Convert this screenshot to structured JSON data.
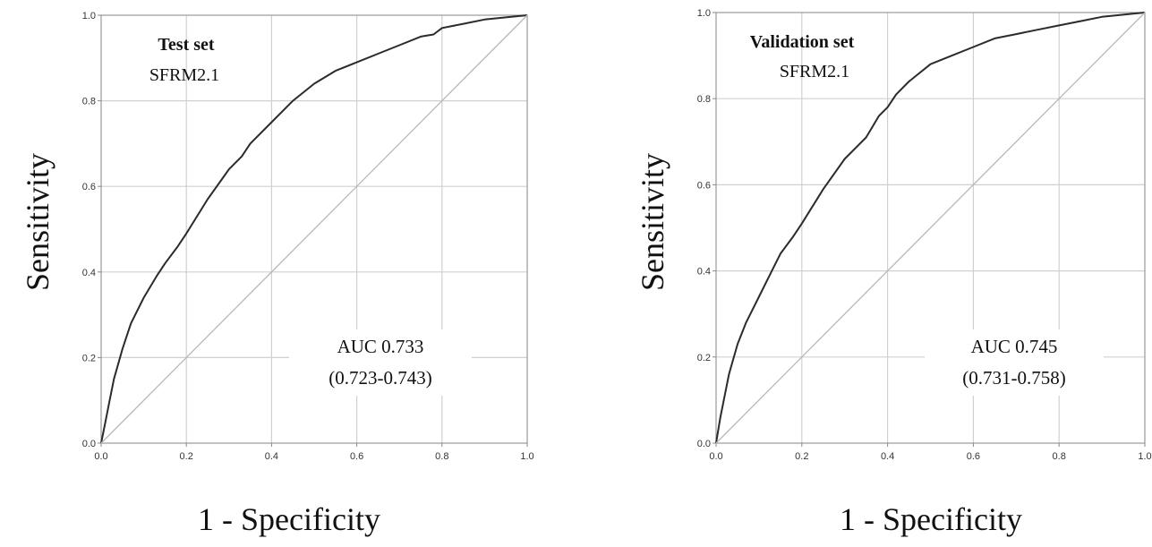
{
  "chart_data": [
    {
      "type": "line",
      "title": "Test set",
      "subtitle": "SFRM2.1",
      "xlabel": "1 - Specificity",
      "ylabel": "Sensitivity",
      "xlim": [
        0,
        1
      ],
      "ylim": [
        0,
        1
      ],
      "xticks": [
        "0.0",
        "0.2",
        "0.4",
        "0.6",
        "0.8",
        "1.0"
      ],
      "yticks": [
        "0.0",
        "0.2",
        "0.4",
        "0.6",
        "0.8",
        "1.0"
      ],
      "grid": true,
      "annotation": [
        "AUC 0.733",
        "(0.723-0.743)"
      ],
      "series": [
        {
          "x": [
            0,
            0.01,
            0.02,
            0.03,
            0.05,
            0.07,
            0.1,
            0.13,
            0.15,
            0.18,
            0.2,
            0.25,
            0.3,
            0.33,
            0.35,
            0.4,
            0.45,
            0.5,
            0.55,
            0.6,
            0.65,
            0.7,
            0.75,
            0.78,
            0.8,
            0.85,
            0.9,
            0.95,
            1.0
          ],
          "y": [
            0,
            0.05,
            0.1,
            0.15,
            0.22,
            0.28,
            0.34,
            0.39,
            0.42,
            0.46,
            0.49,
            0.57,
            0.64,
            0.67,
            0.7,
            0.75,
            0.8,
            0.84,
            0.87,
            0.89,
            0.91,
            0.93,
            0.95,
            0.955,
            0.97,
            0.98,
            0.99,
            0.995,
            1.0
          ]
        },
        {
          "x": [
            0,
            1
          ],
          "y": [
            0,
            1
          ]
        }
      ]
    },
    {
      "type": "line",
      "title": "Validation set",
      "subtitle": "SFRM2.1",
      "xlabel": "1 - Specificity",
      "ylabel": "Sensitivity",
      "xlim": [
        0,
        1
      ],
      "ylim": [
        0,
        1
      ],
      "xticks": [
        "0.0",
        "0.2",
        "0.4",
        "0.6",
        "0.8",
        "1.0"
      ],
      "yticks": [
        "0.0",
        "0.2",
        "0.4",
        "0.6",
        "0.8",
        "1.0"
      ],
      "grid": true,
      "annotation": [
        "AUC 0.745",
        "(0.731-0.758)"
      ],
      "series": [
        {
          "x": [
            0,
            0.01,
            0.02,
            0.03,
            0.05,
            0.07,
            0.1,
            0.13,
            0.15,
            0.18,
            0.2,
            0.25,
            0.3,
            0.33,
            0.35,
            0.38,
            0.4,
            0.42,
            0.45,
            0.5,
            0.55,
            0.6,
            0.65,
            0.7,
            0.75,
            0.8,
            0.85,
            0.9,
            0.95,
            1.0
          ],
          "y": [
            0,
            0.06,
            0.11,
            0.16,
            0.23,
            0.28,
            0.34,
            0.4,
            0.44,
            0.48,
            0.51,
            0.59,
            0.66,
            0.69,
            0.71,
            0.76,
            0.78,
            0.81,
            0.84,
            0.88,
            0.9,
            0.92,
            0.94,
            0.95,
            0.96,
            0.97,
            0.98,
            0.99,
            0.995,
            1.0
          ]
        },
        {
          "x": [
            0,
            1
          ],
          "y": [
            0,
            1
          ]
        }
      ]
    }
  ]
}
